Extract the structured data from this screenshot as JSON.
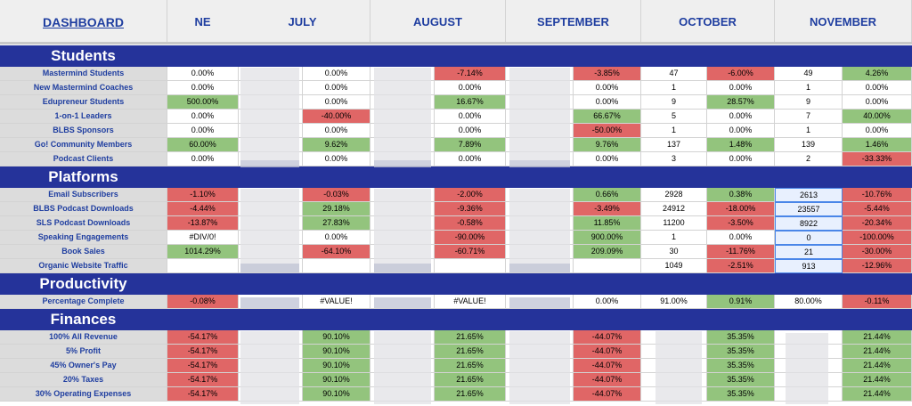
{
  "header": {
    "dashboard": "DASHBOARD",
    "months": [
      "NE",
      "JULY",
      "AUGUST",
      "SEPTEMBER",
      "OCTOBER",
      "NOVEMBER"
    ]
  },
  "sections": {
    "students": "Students",
    "platforms": "Platforms",
    "productivity": "Productivity",
    "finances": "Finances"
  },
  "students": [
    {
      "label": "Mastermind Students",
      "june": "0.00%",
      "july": "0.00%",
      "august": "-7.14%",
      "september": "-3.85%",
      "oct_count": "47",
      "oct_pct": "-6.00%",
      "nov_count": "49",
      "nov_pct": "4.26%"
    },
    {
      "label": "New Mastermind Coaches",
      "june": "0.00%",
      "july": "0.00%",
      "august": "0.00%",
      "september": "0.00%",
      "oct_count": "1",
      "oct_pct": "0.00%",
      "nov_count": "1",
      "nov_pct": "0.00%"
    },
    {
      "label": "Edupreneur Students",
      "june": "500.00%",
      "july": "0.00%",
      "august": "16.67%",
      "september": "0.00%",
      "oct_count": "9",
      "oct_pct": "28.57%",
      "nov_count": "9",
      "nov_pct": "0.00%"
    },
    {
      "label": "1-on-1 Leaders",
      "june": "0.00%",
      "july": "-40.00%",
      "august": "0.00%",
      "september": "66.67%",
      "oct_count": "5",
      "oct_pct": "0.00%",
      "nov_count": "7",
      "nov_pct": "40.00%"
    },
    {
      "label": "BLBS Sponsors",
      "june": "0.00%",
      "july": "0.00%",
      "august": "0.00%",
      "september": "-50.00%",
      "oct_count": "1",
      "oct_pct": "0.00%",
      "nov_count": "1",
      "nov_pct": "0.00%"
    },
    {
      "label": "Go! Community Members",
      "june": "60.00%",
      "july": "9.62%",
      "august": "7.89%",
      "september": "9.76%",
      "oct_count": "137",
      "oct_pct": "1.48%",
      "nov_count": "139",
      "nov_pct": "1.46%"
    },
    {
      "label": "Podcast Clients",
      "june": "0.00%",
      "july": "0.00%",
      "august": "0.00%",
      "september": "0.00%",
      "oct_count": "3",
      "oct_pct": "0.00%",
      "nov_count": "2",
      "nov_pct": "-33.33%"
    }
  ],
  "platforms": [
    {
      "label": "Email Subscribers",
      "june": "-1.10%",
      "july": "-0.03%",
      "august": "-2.00%",
      "september": "0.66%",
      "oct_count": "2928",
      "oct_pct": "0.38%",
      "nov_count": "2613",
      "nov_pct": "-10.76%"
    },
    {
      "label": "BLBS Podcast Downloads",
      "june": "-4.44%",
      "july": "29.18%",
      "august": "-9.36%",
      "september": "-3.49%",
      "oct_count": "24912",
      "oct_pct": "-18.00%",
      "nov_count": "23557",
      "nov_pct": "-5.44%"
    },
    {
      "label": "SLS Podcast Downloads",
      "june": "-13.87%",
      "july": "27.83%",
      "august": "-0.58%",
      "september": "11.85%",
      "oct_count": "11200",
      "oct_pct": "-3.50%",
      "nov_count": "8922",
      "nov_pct": "-20.34%"
    },
    {
      "label": "Speaking Engagements",
      "june": "#DIV/0!",
      "july": "0.00%",
      "august": "-90.00%",
      "september": "900.00%",
      "oct_count": "1",
      "oct_pct": "0.00%",
      "nov_count": "0",
      "nov_pct": "-100.00%"
    },
    {
      "label": "Book Sales",
      "june": "1014.29%",
      "july": "-64.10%",
      "august": "-60.71%",
      "september": "209.09%",
      "oct_count": "30",
      "oct_pct": "-11.76%",
      "nov_count": "21",
      "nov_pct": "-30.00%"
    },
    {
      "label": "Organic Website Traffic",
      "june": "",
      "july": "",
      "august": "",
      "september": "",
      "oct_count": "1049",
      "oct_pct": "-2.51%",
      "nov_count": "913",
      "nov_pct": "-12.96%"
    }
  ],
  "productivity": [
    {
      "label": "Percentage Complete",
      "june": "-0.08%",
      "july": "#VALUE!",
      "august": "#VALUE!",
      "september": "0.00%",
      "oct_count": "91.00%",
      "oct_pct": "0.91%",
      "nov_count": "80.00%",
      "nov_pct": "-0.11%"
    }
  ],
  "finances": [
    {
      "label": "100% All Revenue",
      "june": "-54.17%",
      "july": "90.10%",
      "august": "21.65%",
      "september": "-44.07%",
      "oct_pct": "35.35%",
      "nov_pct": "21.44%"
    },
    {
      "label": "5% Profit",
      "june": "-54.17%",
      "july": "90.10%",
      "august": "21.65%",
      "september": "-44.07%",
      "oct_pct": "35.35%",
      "nov_pct": "21.44%"
    },
    {
      "label": "45% Owner's Pay",
      "june": "-54.17%",
      "july": "90.10%",
      "august": "21.65%",
      "september": "-44.07%",
      "oct_pct": "35.35%",
      "nov_pct": "21.44%"
    },
    {
      "label": "20% Taxes",
      "june": "-54.17%",
      "july": "90.10%",
      "august": "21.65%",
      "september": "-44.07%",
      "oct_pct": "35.35%",
      "nov_pct": "21.44%"
    },
    {
      "label": "30% Operating Expenses",
      "june": "-54.17%",
      "july": "90.10%",
      "august": "21.65%",
      "september": "-44.07%",
      "oct_pct": "35.35%",
      "nov_pct": "21.44%"
    }
  ],
  "colors": {
    "green": "#93c47d",
    "red": "#e06666",
    "navy": "#25339a",
    "label_text": "#1f3ea0"
  }
}
